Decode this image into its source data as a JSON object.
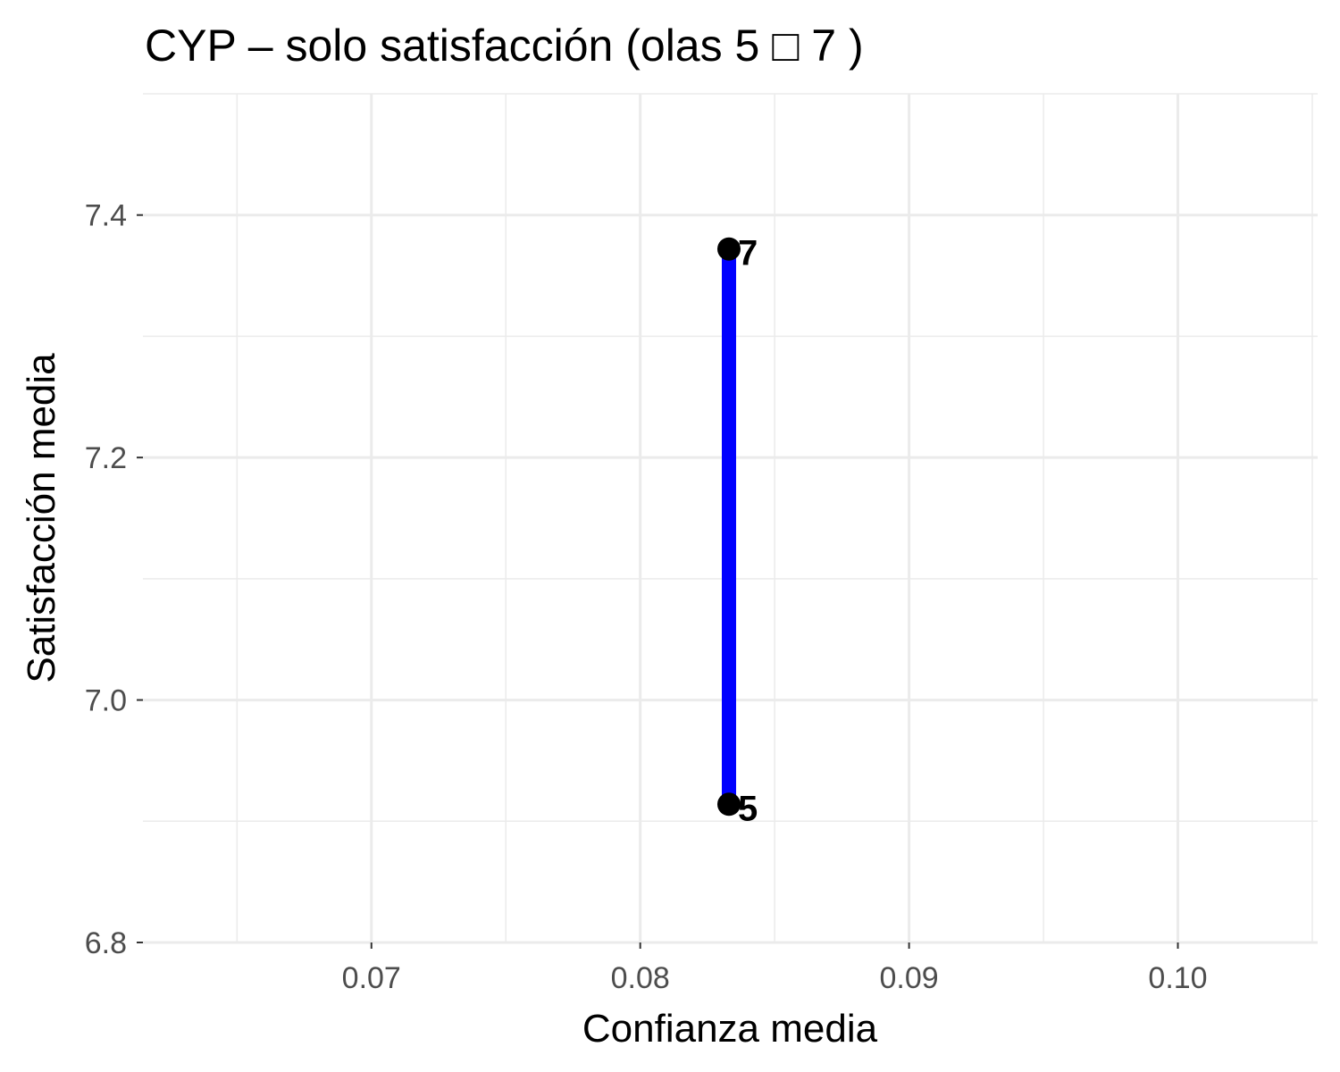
{
  "chart_data": {
    "type": "line",
    "title": "CYP – solo satisfacción (olas 5 □ 7 )",
    "xlabel": "Confianza media",
    "ylabel": "Satisfacción media",
    "xlim": [
      0.0615,
      0.1052
    ],
    "ylim": [
      6.8,
      7.5
    ],
    "x_ticks": [
      0.07,
      0.08,
      0.09,
      0.1
    ],
    "x_tick_labels": [
      "0.07",
      "0.08",
      "0.09",
      "0.10"
    ],
    "y_ticks": [
      6.8,
      7.0,
      7.2,
      7.4
    ],
    "y_tick_labels": [
      "6.8",
      "7.0",
      "7.2",
      "7.4"
    ],
    "grid": true,
    "series": [
      {
        "color": "#0000ff",
        "points": [
          {
            "x": 0.0833,
            "y": 6.914,
            "label": "5"
          },
          {
            "x": 0.0833,
            "y": 7.372,
            "label": "7"
          }
        ]
      }
    ]
  }
}
